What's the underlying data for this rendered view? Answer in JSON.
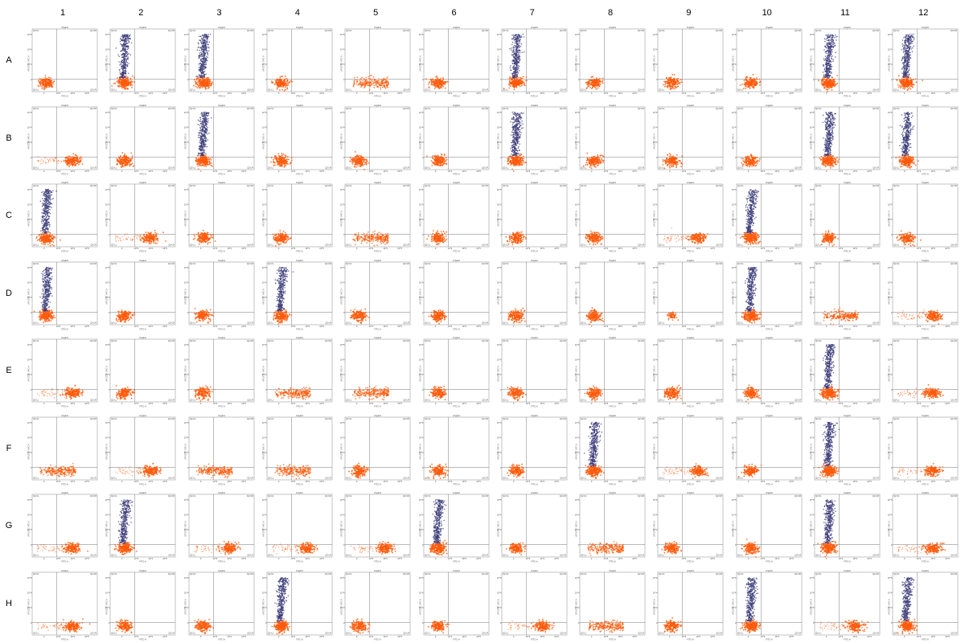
{
  "column_labels": [
    "1",
    "2",
    "3",
    "4",
    "5",
    "6",
    "7",
    "8",
    "9",
    "10",
    "11",
    "12"
  ],
  "row_labels": [
    "A",
    "B",
    "C",
    "D",
    "E",
    "F",
    "G",
    "H"
  ],
  "axis": {
    "xlabel": "FITC-A",
    "ylabel": "APC/CY7 APC-A",
    "gate": "singlets",
    "quadrants": [
      "Q2-UL",
      "Q2-UR",
      "Q2-LL",
      "Q2-LR"
    ],
    "x_ticks": [
      "0",
      "10^3",
      "10^4",
      "10^5"
    ],
    "y_ticks": [
      "0",
      "10^3",
      "10^4",
      "10^5"
    ]
  },
  "colors": {
    "orange_population": "#ff5a0a",
    "blue_population": "#3d3d7a",
    "gate_line": "#777777",
    "frame": "#888888"
  },
  "chart_data": {
    "type": "scatter",
    "description_types": {
      "N": "negative: single orange cluster low/low",
      "P": "orange low cluster + tall blue population rising above horizontal gate",
      "R": "orange cluster shifted right in FITC",
      "W": "wide orange smear along x-axis",
      "S": "small/sparse orange cluster"
    },
    "plates": [
      {
        "row": "A",
        "types": [
          "N",
          "P",
          "P",
          "N",
          "W",
          "N",
          "P",
          "N",
          "N",
          "N",
          "P",
          "P"
        ]
      },
      {
        "row": "B",
        "types": [
          "R",
          "N",
          "P",
          "N",
          "N",
          "N",
          "P",
          "N",
          "N",
          "N",
          "P",
          "P"
        ]
      },
      {
        "row": "C",
        "types": [
          "P",
          "R",
          "N",
          "N",
          "W",
          "N",
          "N",
          "N",
          "R",
          "P",
          "N",
          "N"
        ]
      },
      {
        "row": "D",
        "types": [
          "P",
          "N",
          "N",
          "P",
          "N",
          "N",
          "N",
          "N",
          "S",
          "P",
          "W",
          "R"
        ]
      },
      {
        "row": "E",
        "types": [
          "R",
          "N",
          "N",
          "W",
          "W",
          "N",
          "N",
          "N",
          "N",
          "N",
          "P",
          "R"
        ]
      },
      {
        "row": "F",
        "types": [
          "W",
          "R",
          "W",
          "W",
          "N",
          "N",
          "N",
          "P",
          "R",
          "N",
          "P",
          "R"
        ]
      },
      {
        "row": "G",
        "types": [
          "R",
          "P",
          "R",
          "R",
          "R",
          "P",
          "N",
          "W",
          "N",
          "N",
          "P",
          "R"
        ]
      },
      {
        "row": "H",
        "types": [
          "R",
          "N",
          "N",
          "P",
          "N",
          "N",
          "R",
          "W",
          "N",
          "P",
          "R",
          "P"
        ]
      }
    ]
  }
}
